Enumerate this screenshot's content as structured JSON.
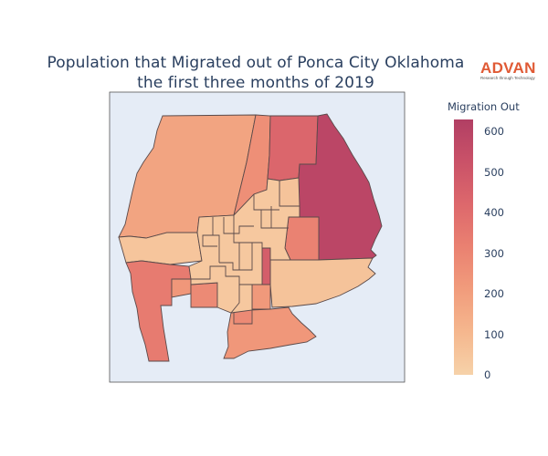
{
  "title": {
    "line1": "Population that Migrated out of Ponca City Oklahoma",
    "line2": "the first three months of 2019"
  },
  "logo": {
    "word": "ADVAN",
    "tagline": "Research through Technology"
  },
  "colorbar": {
    "title": "Migration Out",
    "min": 0,
    "max": 630,
    "ticks": [
      0,
      100,
      200,
      300,
      400,
      500,
      600
    ],
    "colors": [
      "#f6d2a9",
      "#f5b78e",
      "#f19c7c",
      "#ea8171",
      "#dd686c",
      "#ca5268",
      "#b13f64"
    ]
  },
  "map": {
    "background": "#e5ecf6",
    "border_color": "#5a4a4a",
    "regions": [
      {
        "name": "northwest",
        "value": 180
      },
      {
        "name": "north-center-strip",
        "value": 260
      },
      {
        "name": "north-center",
        "value": 430
      },
      {
        "name": "east",
        "value": 590
      },
      {
        "name": "north-small-east",
        "value": 60
      },
      {
        "name": "center-east",
        "value": 310
      },
      {
        "name": "west-band",
        "value": 50
      },
      {
        "name": "southwest",
        "value": 340
      },
      {
        "name": "south-center",
        "value": 230
      },
      {
        "name": "southeast",
        "value": 60
      },
      {
        "name": "center-narrow",
        "value": 470
      },
      {
        "name": "small-southwest",
        "value": 230
      },
      {
        "name": "center-west-small",
        "value": 280
      },
      {
        "name": "center-west-tiny",
        "value": 280
      },
      {
        "name": "center-south-small",
        "value": 220
      },
      {
        "name": "core",
        "value": 40
      }
    ]
  }
}
